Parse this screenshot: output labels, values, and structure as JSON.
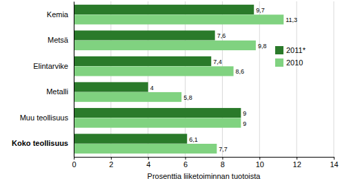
{
  "chart_data": {
    "type": "bar",
    "orientation": "horizontal",
    "categories": [
      "Kemia",
      "Metsä",
      "Elintarvike",
      "Metalli",
      "Muu teollisuus",
      "Koko teollisuus"
    ],
    "series": [
      {
        "name": "2011*",
        "color": "#2a7a2a",
        "values": [
          9.7,
          7.6,
          7.4,
          4,
          9,
          6.1
        ],
        "value_labels": [
          "9,7",
          "7,6",
          "7,4",
          "4",
          "9",
          "6,1"
        ]
      },
      {
        "name": "2010",
        "color": "#80d280",
        "values": [
          11.3,
          9.8,
          8.6,
          5.8,
          9,
          7.7
        ],
        "value_labels": [
          "11,3",
          "9,8",
          "8,6",
          "5,8",
          "9",
          "7,7"
        ]
      }
    ],
    "x_label": "Prosenttia liiketoiminnan tuotoista",
    "xlim": [
      0,
      14
    ],
    "xticks": [
      0,
      2,
      4,
      6,
      8,
      10,
      12,
      14
    ],
    "grid": true,
    "legend": "right",
    "data_labels": true
  }
}
